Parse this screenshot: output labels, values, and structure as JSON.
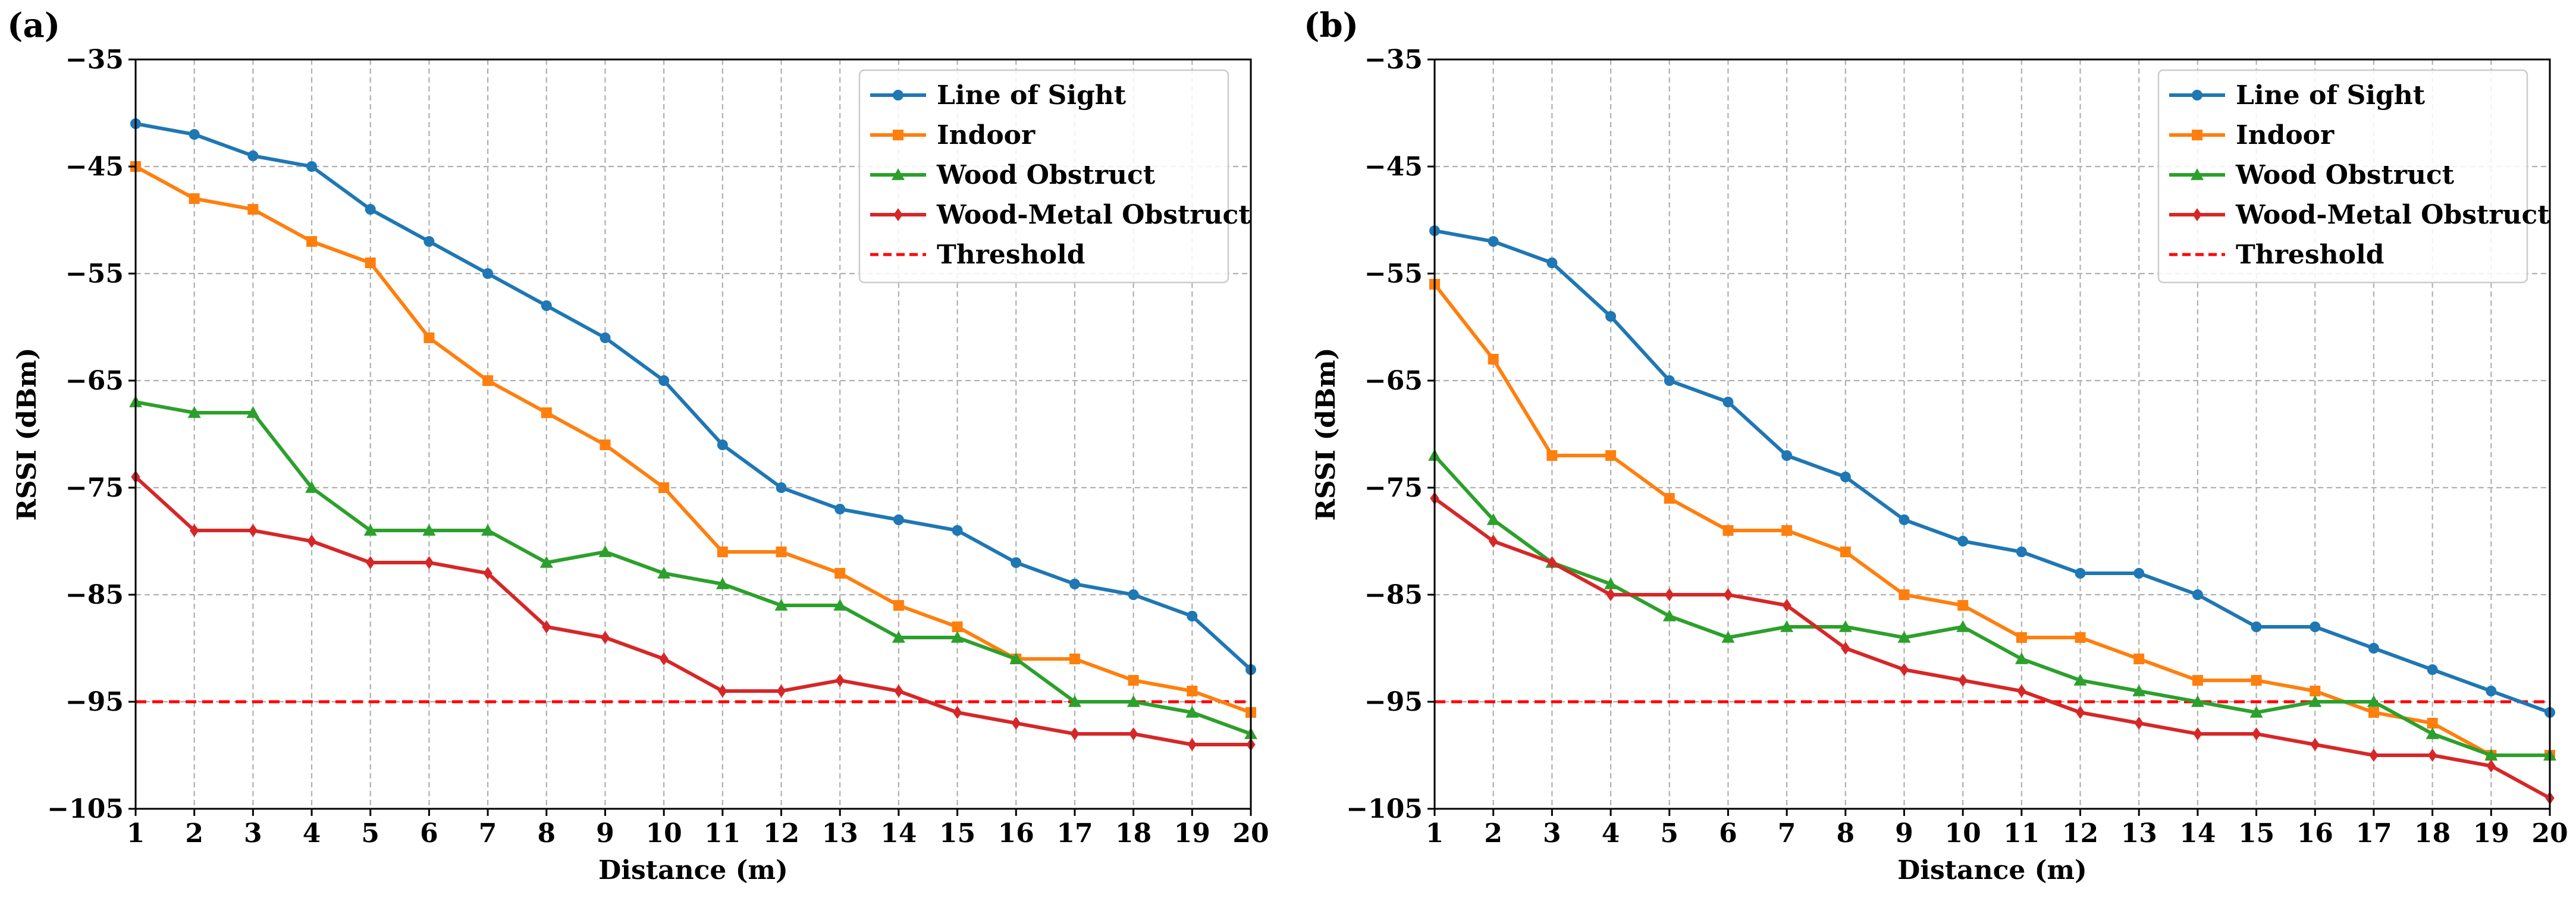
{
  "chart_data": [
    {
      "type": "line",
      "panel_label": "(a)",
      "xlabel": "Distance (m)",
      "ylabel": "RSSI (dBm)",
      "xlim": [
        1,
        20
      ],
      "ylim": [
        -105,
        -35
      ],
      "x_ticks": [
        1,
        2,
        3,
        4,
        5,
        6,
        7,
        8,
        9,
        10,
        11,
        12,
        13,
        14,
        15,
        16,
        17,
        18,
        19,
        20
      ],
      "y_ticks": [
        -35,
        -45,
        -55,
        -65,
        -75,
        -85,
        -95,
        -105
      ],
      "grid": true,
      "legend_position": "top-right",
      "x": [
        1,
        2,
        3,
        4,
        5,
        6,
        7,
        8,
        9,
        10,
        11,
        12,
        13,
        14,
        15,
        16,
        17,
        18,
        19,
        20
      ],
      "series": [
        {
          "name": "Line of Sight",
          "color": "#1f77b4",
          "marker": "circle",
          "values": [
            -41,
            -42,
            -44,
            -45,
            -49,
            -52,
            -55,
            -58,
            -61,
            -65,
            -71,
            -75,
            -77,
            -78,
            -79,
            -82,
            -84,
            -85,
            -87,
            -92
          ]
        },
        {
          "name": "Indoor",
          "color": "#ff7f0e",
          "marker": "square",
          "values": [
            -45,
            -48,
            -49,
            -52,
            -54,
            -61,
            -65,
            -68,
            -71,
            -75,
            -81,
            -81,
            -83,
            -86,
            -88,
            -91,
            -91,
            -93,
            -94,
            -96
          ]
        },
        {
          "name": "Wood Obstruct",
          "color": "#2ca02c",
          "marker": "triangle",
          "values": [
            -67,
            -68,
            -68,
            -75,
            -79,
            -79,
            -79,
            -82,
            -81,
            -83,
            -84,
            -86,
            -86,
            -89,
            -89,
            -91,
            -95,
            -95,
            -96,
            -98
          ]
        },
        {
          "name": "Wood-Metal Obstruct",
          "color": "#d62728",
          "marker": "diamond",
          "values": [
            -74,
            -79,
            -79,
            -80,
            -82,
            -82,
            -83,
            -88,
            -89,
            -91,
            -94,
            -94,
            -93,
            -94,
            -96,
            -97,
            -98,
            -98,
            -99,
            -99
          ]
        }
      ],
      "threshold": {
        "name": "Threshold",
        "value": -95,
        "color": "#ff0000",
        "style": "dashed"
      }
    },
    {
      "type": "line",
      "panel_label": "(b)",
      "xlabel": "Distance (m)",
      "ylabel": "RSSI (dBm)",
      "xlim": [
        1,
        20
      ],
      "ylim": [
        -105,
        -35
      ],
      "x_ticks": [
        1,
        2,
        3,
        4,
        5,
        6,
        7,
        8,
        9,
        10,
        11,
        12,
        13,
        14,
        15,
        16,
        17,
        18,
        19,
        20
      ],
      "y_ticks": [
        -35,
        -45,
        -55,
        -65,
        -75,
        -85,
        -95,
        -105
      ],
      "grid": true,
      "legend_position": "top-right",
      "x": [
        1,
        2,
        3,
        4,
        5,
        6,
        7,
        8,
        9,
        10,
        11,
        12,
        13,
        14,
        15,
        16,
        17,
        18,
        19,
        20
      ],
      "series": [
        {
          "name": "Line of Sight",
          "color": "#1f77b4",
          "marker": "circle",
          "values": [
            -51,
            -52,
            -54,
            -59,
            -65,
            -67,
            -72,
            -74,
            -78,
            -80,
            -81,
            -83,
            -83,
            -85,
            -88,
            -88,
            -90,
            -92,
            -94,
            -96
          ]
        },
        {
          "name": "Indoor",
          "color": "#ff7f0e",
          "marker": "square",
          "values": [
            -56,
            -63,
            -72,
            -72,
            -76,
            -79,
            -79,
            -81,
            -85,
            -86,
            -89,
            -89,
            -91,
            -93,
            -93,
            -94,
            -96,
            -97,
            -100,
            -100
          ]
        },
        {
          "name": "Wood Obstruct",
          "color": "#2ca02c",
          "marker": "triangle",
          "values": [
            -72,
            -78,
            -82,
            -84,
            -87,
            -89,
            -88,
            -88,
            -89,
            -88,
            -91,
            -93,
            -94,
            -95,
            -96,
            -95,
            -95,
            -98,
            -100,
            -100
          ]
        },
        {
          "name": "Wood-Metal Obstruct",
          "color": "#d62728",
          "marker": "diamond",
          "values": [
            -76,
            -80,
            -82,
            -85,
            -85,
            -85,
            -86,
            -90,
            -92,
            -93,
            -94,
            -96,
            -97,
            -98,
            -98,
            -99,
            -100,
            -100,
            -101,
            -104
          ]
        }
      ],
      "threshold": {
        "name": "Threshold",
        "value": -95,
        "color": "#ff0000",
        "style": "dashed"
      }
    }
  ]
}
